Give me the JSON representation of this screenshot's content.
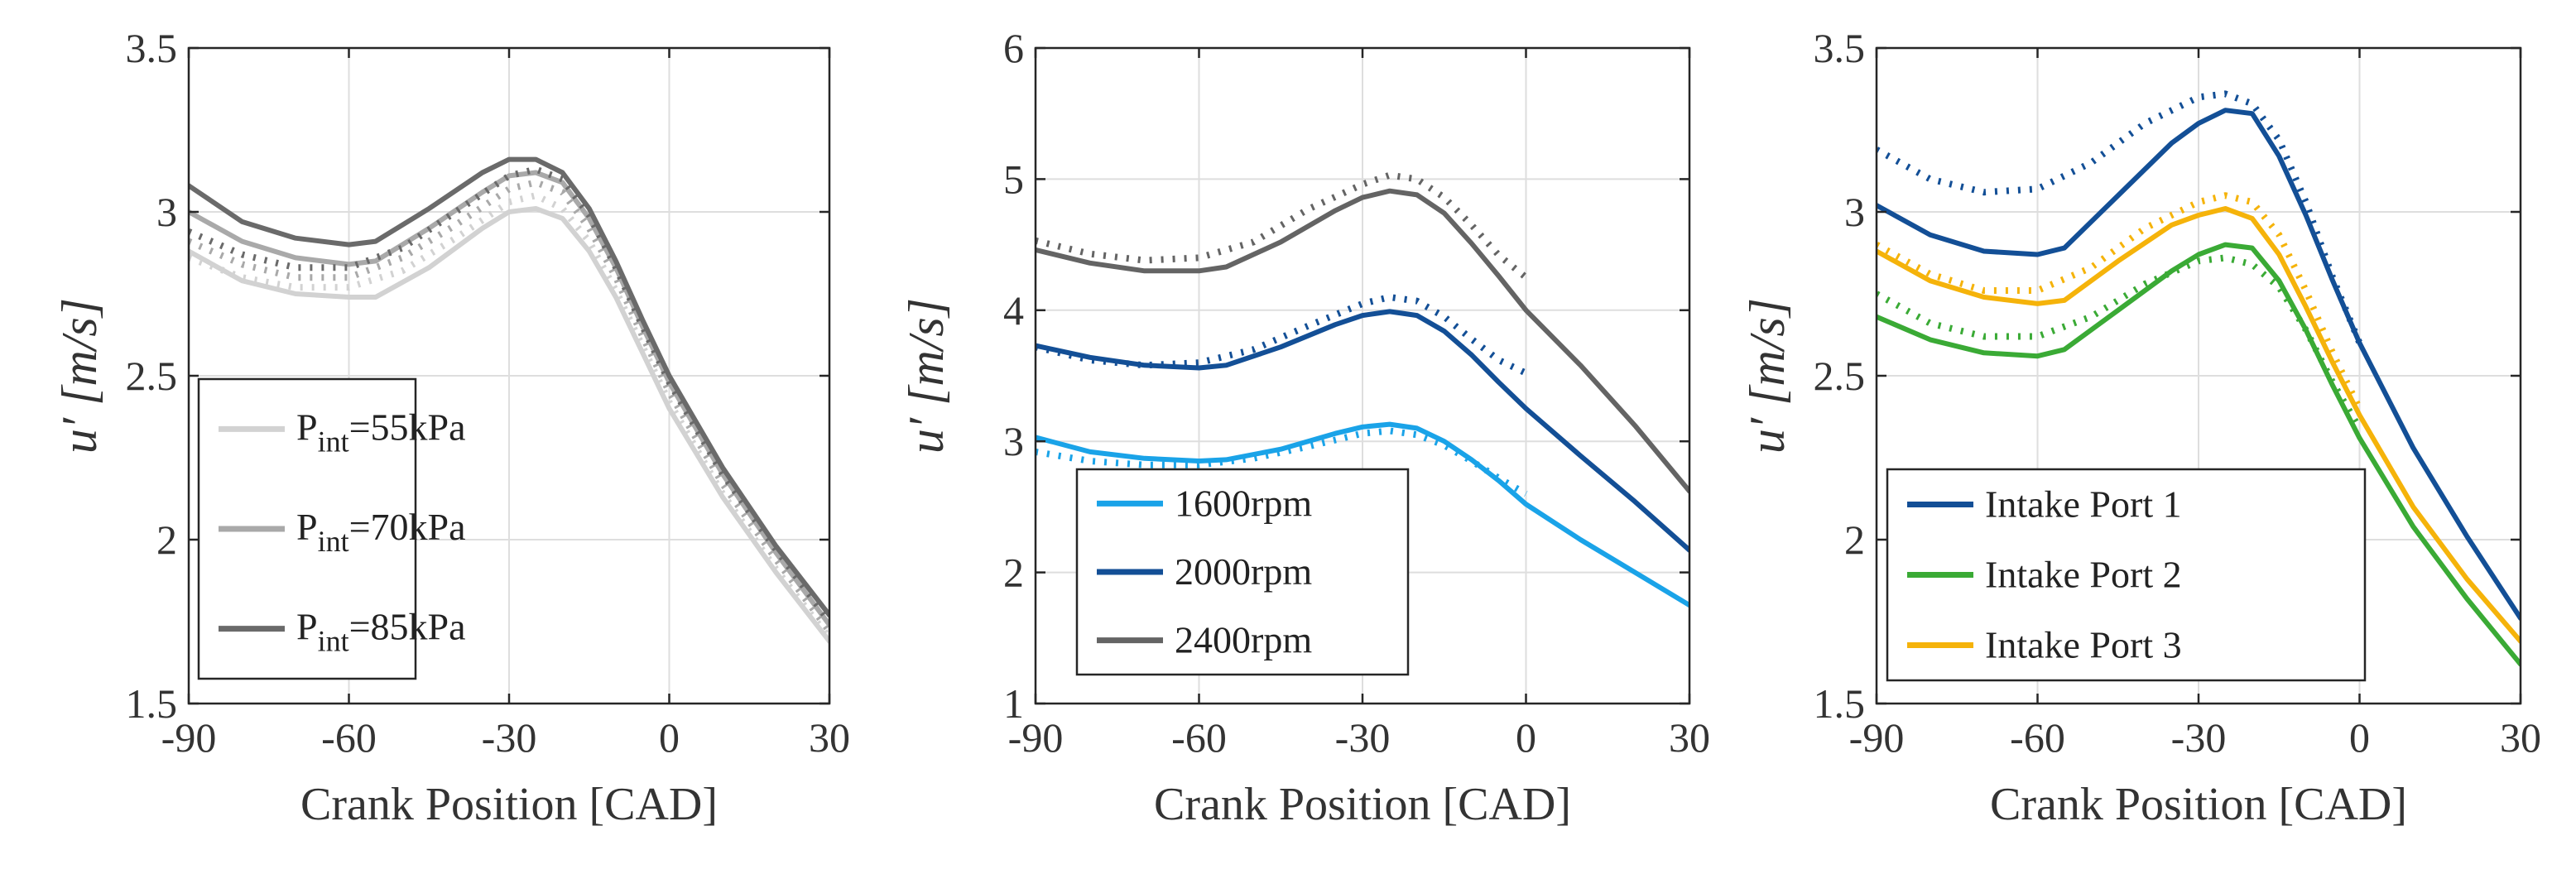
{
  "chart_data": [
    {
      "type": "line",
      "xlabel": "Crank Position [CAD]",
      "ylabel": "u′ [m/s]",
      "xlim": [
        -90,
        30
      ],
      "ylim": [
        1.5,
        3.5
      ],
      "xticks": [
        "-90",
        "-60",
        "-30",
        "0",
        "30"
      ],
      "yticks": [
        "1.5",
        "2",
        "2.5",
        "3",
        "3.5"
      ],
      "grid": true,
      "legend_position": "bottom-left",
      "series": [
        {
          "name": "P",
          "sub": "int",
          "suffix": "=55kPa",
          "label": "Pint=55kPa",
          "color": "#d2d2d2",
          "style": "solid",
          "x": [
            -90,
            -80,
            -70,
            -60,
            -55,
            -45,
            -35,
            -30,
            -25,
            -20,
            -15,
            -10,
            -5,
            0,
            10,
            20,
            30
          ],
          "y": [
            2.88,
            2.79,
            2.75,
            2.74,
            2.74,
            2.83,
            2.95,
            3.0,
            3.01,
            2.98,
            2.88,
            2.74,
            2.57,
            2.4,
            2.13,
            1.9,
            1.69
          ]
        },
        {
          "name": "P",
          "sub": "int",
          "suffix": "=70kPa",
          "label": "Pint=70kPa",
          "color": "#a9a9a9",
          "style": "solid",
          "x": [
            -90,
            -80,
            -70,
            -60,
            -55,
            -45,
            -35,
            -30,
            -25,
            -20,
            -15,
            -10,
            -5,
            0,
            10,
            20,
            30
          ],
          "y": [
            3.0,
            2.91,
            2.86,
            2.84,
            2.85,
            2.95,
            3.06,
            3.11,
            3.12,
            3.09,
            2.98,
            2.83,
            2.65,
            2.48,
            2.2,
            1.96,
            1.74
          ]
        },
        {
          "name": "P",
          "sub": "int",
          "suffix": "=85kPa",
          "label": "Pint=85kPa",
          "color": "#6a6a6a",
          "style": "solid",
          "x": [
            -90,
            -80,
            -70,
            -60,
            -55,
            -45,
            -35,
            -30,
            -25,
            -20,
            -15,
            -10,
            -5,
            0,
            10,
            20,
            30
          ],
          "y": [
            3.08,
            2.97,
            2.92,
            2.9,
            2.91,
            3.01,
            3.12,
            3.16,
            3.16,
            3.12,
            3.01,
            2.85,
            2.67,
            2.5,
            2.22,
            1.98,
            1.77
          ]
        },
        {
          "name": "",
          "color": "#d2d2d2",
          "style": "dotted",
          "x": [
            -90,
            -80,
            -70,
            -60,
            -50,
            -40,
            -30,
            -25,
            -20,
            -15,
            -10,
            -5,
            0,
            10,
            20,
            30
          ],
          "y": [
            2.86,
            2.8,
            2.77,
            2.77,
            2.82,
            2.92,
            3.03,
            3.05,
            3.01,
            2.91,
            2.76,
            2.59,
            2.42,
            2.14,
            1.91,
            1.7
          ]
        },
        {
          "name": "",
          "color": "#a9a9a9",
          "style": "dotted",
          "x": [
            -90,
            -80,
            -70,
            -60,
            -50,
            -40,
            -30,
            -25,
            -20,
            -15,
            -10,
            -5,
            0,
            10,
            20,
            30
          ],
          "y": [
            2.91,
            2.84,
            2.8,
            2.8,
            2.86,
            2.96,
            3.07,
            3.09,
            3.06,
            2.95,
            2.8,
            2.62,
            2.45,
            2.17,
            1.94,
            1.72
          ]
        },
        {
          "name": "",
          "color": "#6a6a6a",
          "style": "dotted",
          "x": [
            -90,
            -80,
            -70,
            -60,
            -50,
            -40,
            -30,
            -25,
            -20,
            -15,
            -10,
            -5,
            0,
            10,
            20,
            30
          ],
          "y": [
            2.94,
            2.87,
            2.83,
            2.83,
            2.89,
            3.0,
            3.11,
            3.13,
            3.1,
            2.99,
            2.83,
            2.65,
            2.48,
            2.2,
            1.97,
            1.75
          ]
        }
      ]
    },
    {
      "type": "line",
      "xlabel": "Crank Position [CAD]",
      "ylabel": "u′ [m/s]",
      "xlim": [
        -90,
        30
      ],
      "ylim": [
        1,
        6
      ],
      "xticks": [
        "-90",
        "-60",
        "-30",
        "0",
        "30"
      ],
      "yticks": [
        "1",
        "2",
        "3",
        "4",
        "5",
        "6"
      ],
      "grid": true,
      "legend_position": "bottom-left",
      "series": [
        {
          "name": "1600rpm",
          "label": "1600rpm",
          "color": "#1aa3e8",
          "style": "solid",
          "x": [
            -90,
            -80,
            -70,
            -60,
            -55,
            -45,
            -35,
            -30,
            -25,
            -20,
            -15,
            -10,
            -5,
            0,
            10,
            20,
            30
          ],
          "y": [
            3.03,
            2.92,
            2.87,
            2.85,
            2.86,
            2.94,
            3.06,
            3.11,
            3.13,
            3.1,
            3.0,
            2.86,
            2.7,
            2.52,
            2.25,
            2.0,
            1.75
          ]
        },
        {
          "name": "2000rpm",
          "label": "2000rpm",
          "color": "#134f96",
          "style": "solid",
          "x": [
            -90,
            -80,
            -70,
            -60,
            -55,
            -45,
            -35,
            -30,
            -25,
            -20,
            -15,
            -10,
            -5,
            0,
            10,
            20,
            30
          ],
          "y": [
            3.73,
            3.64,
            3.58,
            3.56,
            3.58,
            3.72,
            3.89,
            3.96,
            3.99,
            3.96,
            3.84,
            3.66,
            3.45,
            3.25,
            2.89,
            2.54,
            2.17
          ]
        },
        {
          "name": "2400rpm",
          "label": "2400rpm",
          "color": "#646464",
          "style": "solid",
          "x": [
            -90,
            -80,
            -70,
            -60,
            -55,
            -45,
            -35,
            -30,
            -25,
            -20,
            -15,
            -10,
            -5,
            0,
            10,
            20,
            30
          ],
          "y": [
            4.46,
            4.36,
            4.3,
            4.3,
            4.33,
            4.52,
            4.76,
            4.86,
            4.91,
            4.88,
            4.74,
            4.51,
            4.26,
            4.0,
            3.58,
            3.12,
            2.62
          ]
        },
        {
          "name": "",
          "color": "#1aa3e8",
          "style": "dotted",
          "x": [
            -90,
            -80,
            -70,
            -60,
            -50,
            -40,
            -30,
            -25,
            -20,
            -15,
            -10,
            -5,
            0
          ],
          "y": [
            2.92,
            2.85,
            2.82,
            2.82,
            2.87,
            2.96,
            3.06,
            3.08,
            3.05,
            2.97,
            2.85,
            2.72,
            2.6
          ]
        },
        {
          "name": "",
          "color": "#134f96",
          "style": "dotted",
          "x": [
            -90,
            -80,
            -70,
            -60,
            -50,
            -40,
            -30,
            -25,
            -20,
            -15,
            -10,
            -5,
            0
          ],
          "y": [
            3.72,
            3.62,
            3.58,
            3.6,
            3.7,
            3.88,
            4.05,
            4.1,
            4.07,
            3.95,
            3.78,
            3.62,
            3.52
          ]
        },
        {
          "name": "",
          "color": "#646464",
          "style": "dotted",
          "x": [
            -90,
            -80,
            -70,
            -60,
            -50,
            -40,
            -30,
            -25,
            -20,
            -15,
            -10,
            -5,
            0
          ],
          "y": [
            4.53,
            4.43,
            4.38,
            4.4,
            4.52,
            4.77,
            4.96,
            5.03,
            5.0,
            4.86,
            4.65,
            4.42,
            4.25
          ]
        }
      ]
    },
    {
      "type": "line",
      "xlabel": "Crank Position [CAD]",
      "ylabel": "u′ [m/s]",
      "xlim": [
        -90,
        30
      ],
      "ylim": [
        1.5,
        3.5
      ],
      "xticks": [
        "-90",
        "-60",
        "-30",
        "0",
        "30"
      ],
      "yticks": [
        "1.5",
        "2",
        "2.5",
        "3",
        "3.5"
      ],
      "grid": true,
      "legend_position": "bottom-left",
      "series": [
        {
          "name": "Intake Port 1",
          "label": "Intake Port 1",
          "color": "#134f96",
          "style": "solid",
          "x": [
            -90,
            -80,
            -70,
            -60,
            -55,
            -45,
            -35,
            -30,
            -25,
            -20,
            -15,
            -10,
            -5,
            0,
            10,
            20,
            30
          ],
          "y": [
            3.02,
            2.93,
            2.88,
            2.87,
            2.89,
            3.05,
            3.21,
            3.27,
            3.31,
            3.3,
            3.17,
            2.99,
            2.79,
            2.6,
            2.28,
            2.01,
            1.76
          ]
        },
        {
          "name": "Intake Port 2",
          "label": "Intake Port 2",
          "color": "#3aaa35",
          "style": "solid",
          "x": [
            -90,
            -80,
            -70,
            -60,
            -55,
            -45,
            -35,
            -30,
            -25,
            -20,
            -15,
            -10,
            -5,
            0,
            10,
            20,
            30
          ],
          "y": [
            2.68,
            2.61,
            2.57,
            2.56,
            2.58,
            2.7,
            2.82,
            2.87,
            2.9,
            2.89,
            2.79,
            2.64,
            2.47,
            2.31,
            2.04,
            1.82,
            1.62
          ]
        },
        {
          "name": "Intake Port 3",
          "label": "Intake Port 3",
          "color": "#f5b30a",
          "style": "solid",
          "x": [
            -90,
            -80,
            -70,
            -60,
            -55,
            -45,
            -35,
            -30,
            -25,
            -20,
            -15,
            -10,
            -5,
            0,
            10,
            20,
            30
          ],
          "y": [
            2.88,
            2.79,
            2.74,
            2.72,
            2.73,
            2.85,
            2.96,
            2.99,
            3.01,
            2.98,
            2.87,
            2.71,
            2.54,
            2.38,
            2.1,
            1.88,
            1.69
          ]
        },
        {
          "name": "",
          "color": "#134f96",
          "style": "dotted",
          "x": [
            -90,
            -80,
            -70,
            -60,
            -50,
            -40,
            -30,
            -25,
            -20,
            -15,
            -10,
            -5,
            0
          ],
          "y": [
            3.19,
            3.1,
            3.06,
            3.07,
            3.15,
            3.27,
            3.35,
            3.36,
            3.33,
            3.22,
            3.03,
            2.8,
            2.6
          ]
        },
        {
          "name": "",
          "color": "#3aaa35",
          "style": "dotted",
          "x": [
            -90,
            -80,
            -70,
            -60,
            -50,
            -40,
            -30,
            -25,
            -20,
            -15,
            -10,
            -5,
            0
          ],
          "y": [
            2.75,
            2.66,
            2.62,
            2.62,
            2.68,
            2.78,
            2.85,
            2.86,
            2.84,
            2.77,
            2.64,
            2.48,
            2.34
          ]
        },
        {
          "name": "",
          "color": "#f5b30a",
          "style": "dotted",
          "x": [
            -90,
            -80,
            -70,
            -60,
            -50,
            -40,
            -30,
            -25,
            -20,
            -15,
            -10,
            -5,
            0
          ],
          "y": [
            2.9,
            2.81,
            2.76,
            2.76,
            2.83,
            2.95,
            3.03,
            3.05,
            3.03,
            2.93,
            2.76,
            2.57,
            2.4
          ]
        }
      ]
    }
  ]
}
